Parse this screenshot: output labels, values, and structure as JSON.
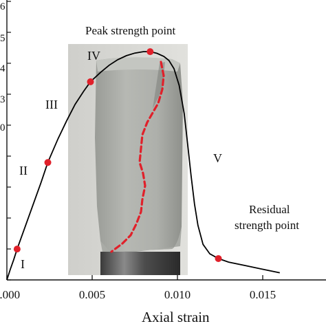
{
  "chart_data": {
    "type": "line",
    "xlabel": "Axial strain",
    "ylabel": "",
    "xlim": [
      0.0,
      0.0195
    ],
    "x_ticks": [
      0.0,
      0.005,
      0.01,
      0.015
    ],
    "x_tick_labels": [
      "0.000",
      "0.005",
      "0.010",
      "0.015"
    ],
    "grid": false,
    "curve": {
      "x": [
        0.0,
        0.0002,
        0.0004,
        0.0006,
        0.001,
        0.0015,
        0.002,
        0.0024,
        0.003,
        0.0035,
        0.004,
        0.0045,
        0.0049,
        0.0055,
        0.006,
        0.0065,
        0.007,
        0.0075,
        0.008,
        0.0084,
        0.0088,
        0.0092,
        0.0095,
        0.0098,
        0.0101,
        0.0104,
        0.0106,
        0.0108,
        0.011,
        0.0112,
        0.0115,
        0.0119,
        0.0124,
        0.013,
        0.014,
        0.015,
        0.016
      ],
      "y": [
        0.0,
        0.45,
        0.85,
        1.3,
        2.1,
        3.1,
        4.1,
        4.95,
        5.95,
        6.7,
        7.4,
        7.95,
        8.35,
        8.75,
        9.05,
        9.28,
        9.45,
        9.56,
        9.62,
        9.62,
        9.55,
        9.42,
        9.25,
        8.9,
        8.2,
        7.0,
        5.7,
        4.4,
        3.2,
        2.3,
        1.5,
        1.1,
        0.9,
        0.75,
        0.6,
        0.45,
        0.3
      ]
    },
    "key_points": [
      {
        "label": "I",
        "x": 0.0006,
        "y": 1.3
      },
      {
        "label": "II",
        "x": 0.0024,
        "y": 4.95
      },
      {
        "label": "III",
        "x": 0.0049,
        "y": 8.35
      },
      {
        "label": "Peak strength point",
        "x": 0.0084,
        "y": 9.62
      },
      {
        "label": "Residual strength point",
        "x": 0.0124,
        "y": 0.9
      }
    ],
    "annotations": {
      "peak": "Peak strength point",
      "residual_line1": "Residual",
      "residual_line2": "strength point",
      "stages": [
        "I",
        "II",
        "III",
        "IV",
        "V"
      ]
    },
    "colors": {
      "curve": "#000000",
      "marker": "#e0202a",
      "crack": "#e0202a"
    },
    "inset_image": "cracked cylindrical rock specimen photo with red dashed crack trace"
  }
}
